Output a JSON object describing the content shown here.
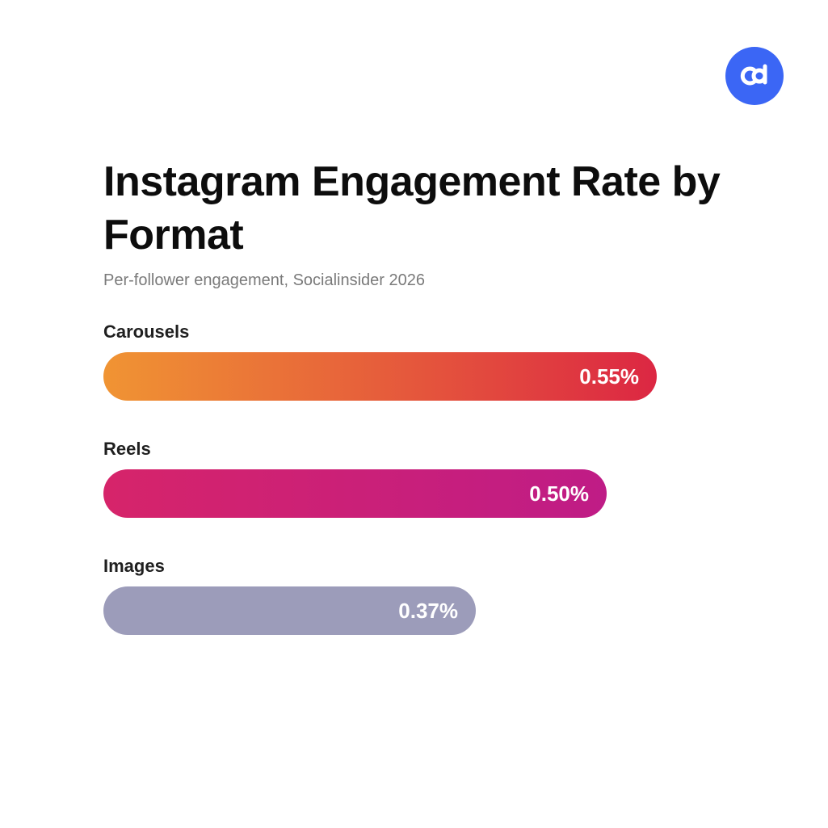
{
  "logo": {
    "name": "cd-logo",
    "color": "#3b66f5"
  },
  "chart_data": {
    "type": "bar",
    "orientation": "horizontal",
    "title": "Instagram Engagement Rate by Format",
    "subtitle": "Per-follower engagement, Socialinsider 2026",
    "categories": [
      "Carousels",
      "Reels",
      "Images"
    ],
    "values": [
      0.55,
      0.5,
      0.37
    ],
    "value_labels": [
      "0.55%",
      "0.50%",
      "0.37%"
    ],
    "unit": "%",
    "xlim": [
      0,
      0.61
    ],
    "grid": false,
    "legend": "none",
    "bar_colors": [
      [
        "#f09433",
        "#dc2743"
      ],
      [
        "#d6246a",
        "#bf1c86"
      ],
      [
        "#9c9cba",
        "#9c9cba"
      ]
    ]
  }
}
